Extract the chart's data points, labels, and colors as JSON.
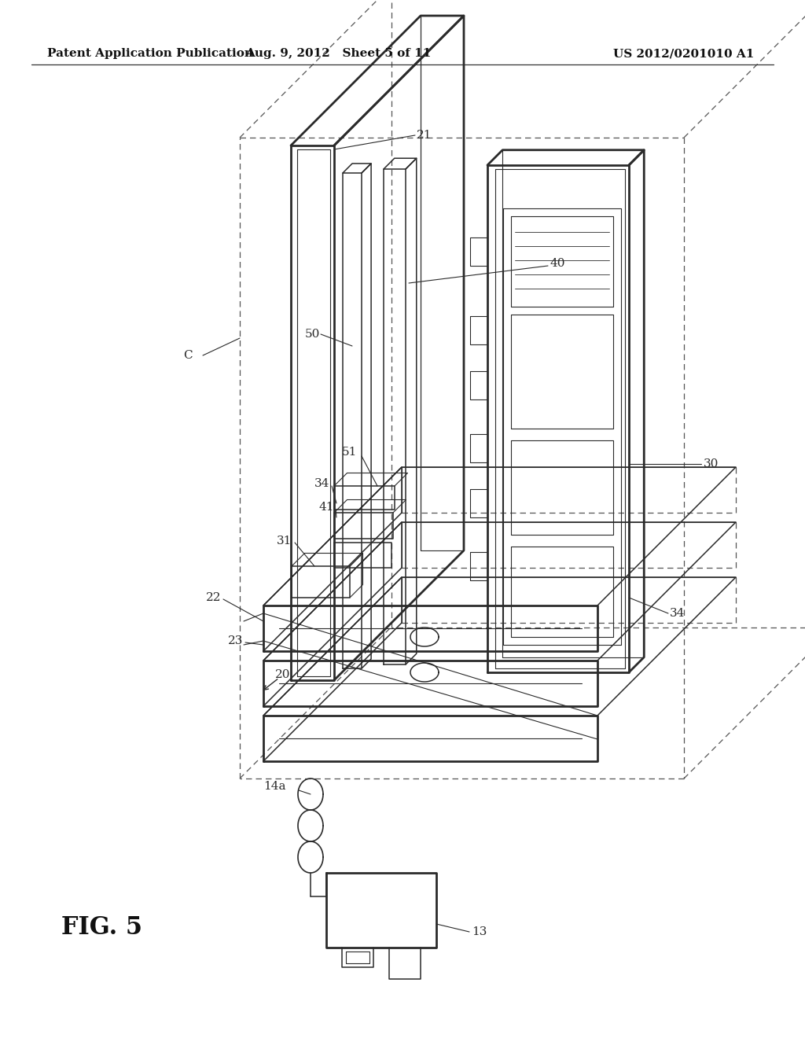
{
  "bg_color": "#ffffff",
  "line_color": "#2a2a2a",
  "dash_color": "#555555",
  "header_left": "Patent Application Publication",
  "header_center": "Aug. 9, 2012   Sheet 5 of 11",
  "header_right": "US 2012/0201010 A1",
  "fig_label": "FIG. 5",
  "lw": 1.3,
  "lw_thick": 2.0,
  "lw_thin": 0.8,
  "lw_med": 1.1
}
